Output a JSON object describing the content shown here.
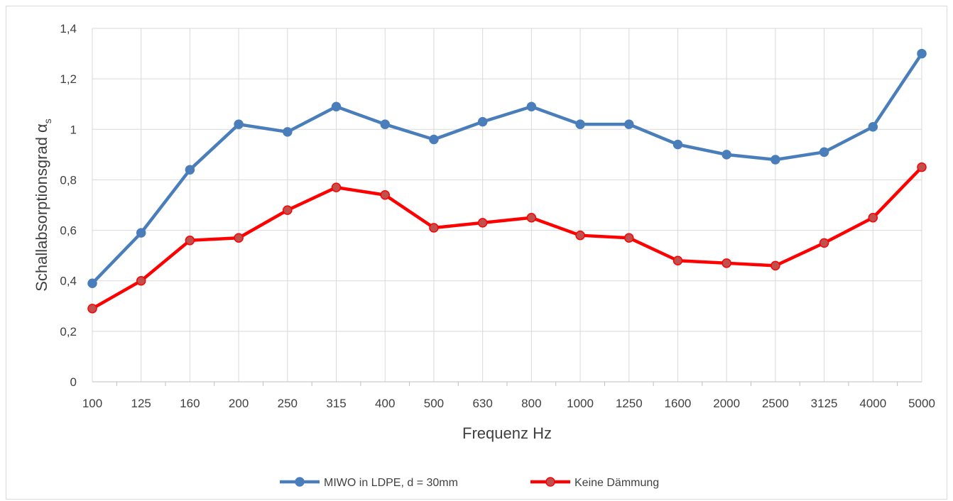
{
  "chart_data": {
    "type": "line",
    "title": "",
    "xlabel": "Frequenz Hz",
    "ylabel": "Schallabsorptionsgrad α",
    "ylabel_subscript": "s",
    "categories": [
      "100",
      "125",
      "160",
      "200",
      "250",
      "315",
      "400",
      "500",
      "630",
      "800",
      "1000",
      "1250",
      "1600",
      "2000",
      "2500",
      "3125",
      "4000",
      "5000"
    ],
    "ylim": [
      0,
      1.4
    ],
    "yticks": [
      "0",
      "0,2",
      "0,4",
      "0,6",
      "0,8",
      "1",
      "1,2",
      "1,4"
    ],
    "grid": true,
    "legend_position": "bottom",
    "series": [
      {
        "name": "MIWO in LDPE, d = 30mm",
        "color": "#4a7ebb",
        "values": [
          0.39,
          0.59,
          0.84,
          1.02,
          0.99,
          1.09,
          1.02,
          0.96,
          1.03,
          1.09,
          1.02,
          1.02,
          0.94,
          0.9,
          0.88,
          0.91,
          1.01,
          1.3
        ]
      },
      {
        "name": "Keine Dämmung",
        "color": "#ff0000",
        "values": [
          0.29,
          0.4,
          0.56,
          0.57,
          0.68,
          0.77,
          0.74,
          0.61,
          0.63,
          0.65,
          0.58,
          0.57,
          0.48,
          0.47,
          0.46,
          0.55,
          0.65,
          0.85
        ]
      }
    ]
  }
}
